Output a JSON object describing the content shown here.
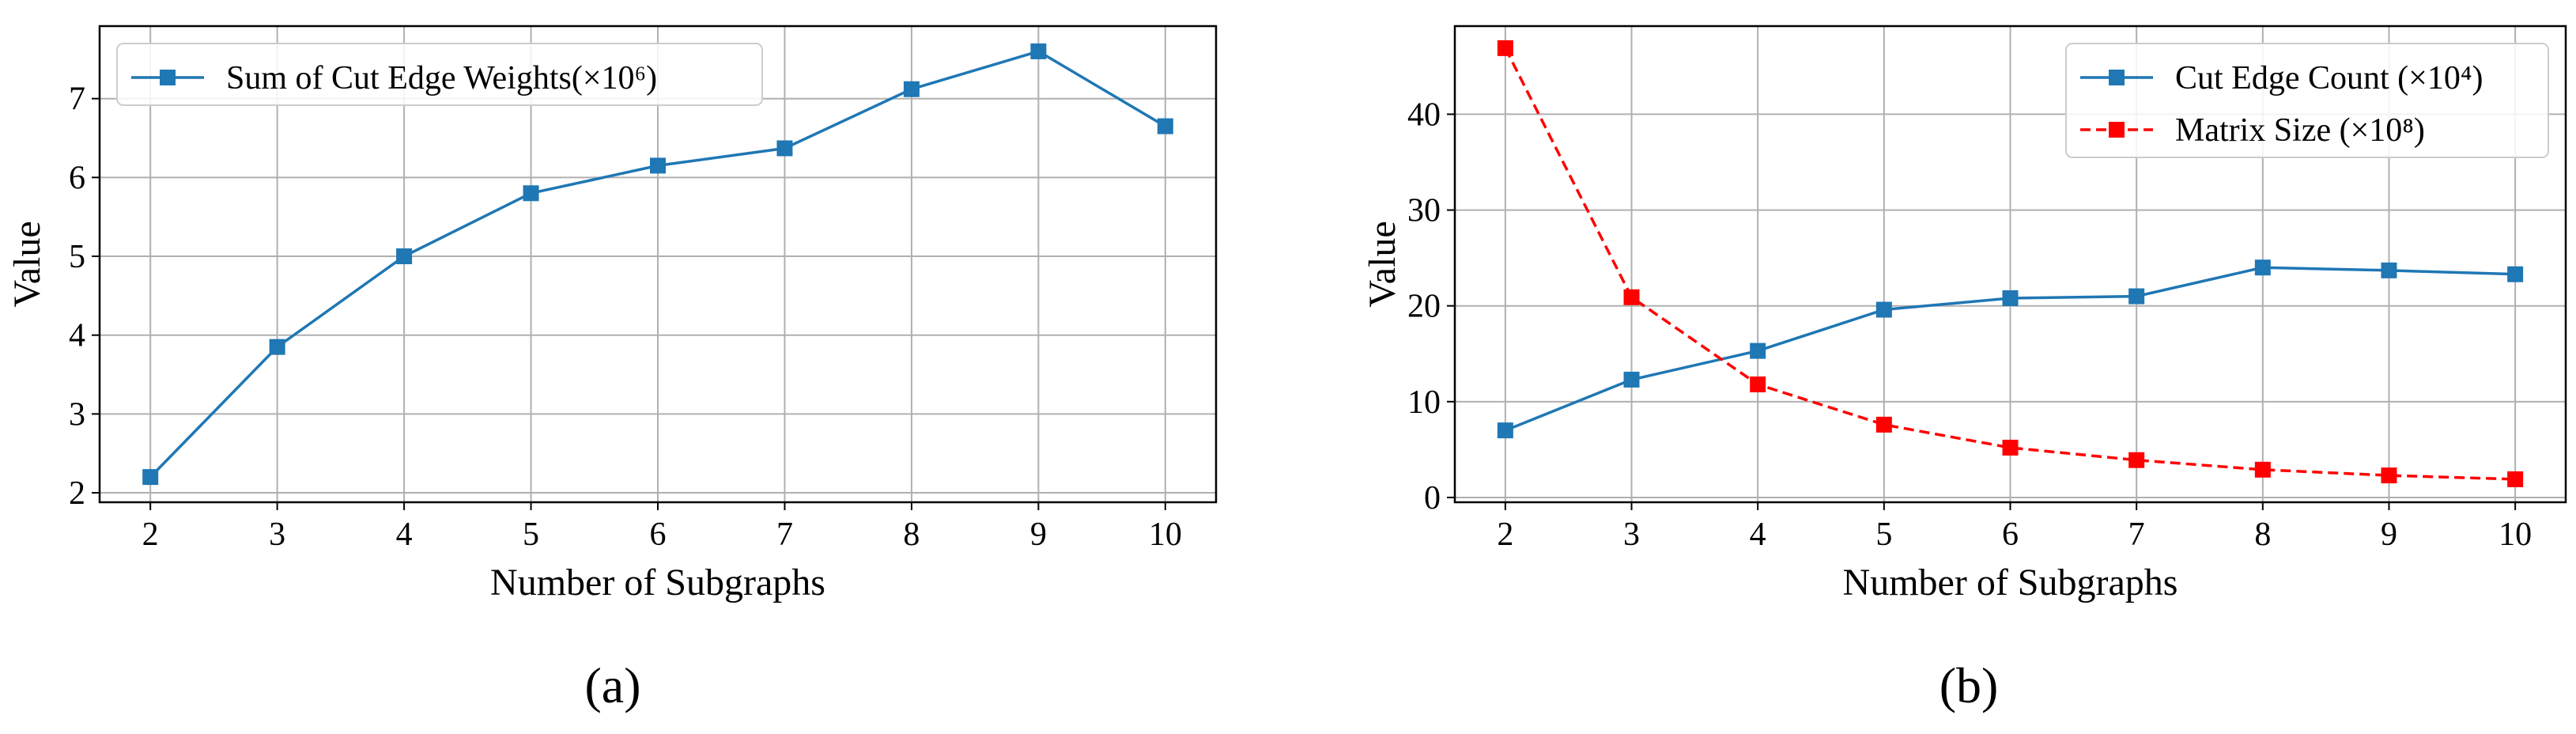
{
  "chart_data": [
    {
      "type": "line",
      "panel_label": "(a)",
      "xlabel": "Number of Subgraphs",
      "ylabel": "Value",
      "x": [
        2,
        3,
        4,
        5,
        6,
        7,
        8,
        9,
        10
      ],
      "xticks": [
        "2",
        "3",
        "4",
        "5",
        "6",
        "7",
        "8",
        "9",
        "10"
      ],
      "yticks": [
        "2",
        "3",
        "4",
        "5",
        "6",
        "7"
      ],
      "xlim": [
        1.6,
        10.4
      ],
      "ylim": [
        1.88,
        7.92
      ],
      "grid": true,
      "legend_position": "top-left",
      "series": [
        {
          "name": "Sum of Cut Edge Weights(×10⁶)",
          "color": "#1f77b4",
          "linestyle": "solid",
          "marker": "square",
          "values": [
            2.2,
            3.85,
            5.0,
            5.8,
            6.15,
            6.37,
            7.12,
            7.6,
            6.65
          ]
        }
      ]
    },
    {
      "type": "line",
      "panel_label": "(b)",
      "xlabel": "Number of Subgraphs",
      "ylabel": "Value",
      "x": [
        2,
        3,
        4,
        5,
        6,
        7,
        8,
        9,
        10
      ],
      "xticks": [
        "2",
        "3",
        "4",
        "5",
        "6",
        "7",
        "8",
        "9",
        "10"
      ],
      "yticks": [
        "0",
        "10",
        "20",
        "30",
        "40"
      ],
      "xlim": [
        1.6,
        10.4
      ],
      "ylim": [
        -0.5,
        49.2
      ],
      "grid": true,
      "legend_position": "top-right",
      "series": [
        {
          "name": "Cut Edge Count (×10⁴)",
          "color": "#1f77b4",
          "linestyle": "solid",
          "marker": "square",
          "values": [
            7.0,
            12.3,
            15.3,
            19.6,
            20.8,
            21.0,
            24.0,
            23.7,
            23.3
          ]
        },
        {
          "name": "Matrix Size (×10⁸)",
          "color": "#ff0000",
          "linestyle": "dashed",
          "marker": "square",
          "values": [
            46.9,
            20.9,
            11.8,
            7.6,
            5.2,
            3.9,
            2.9,
            2.3,
            1.9
          ]
        }
      ]
    }
  ]
}
